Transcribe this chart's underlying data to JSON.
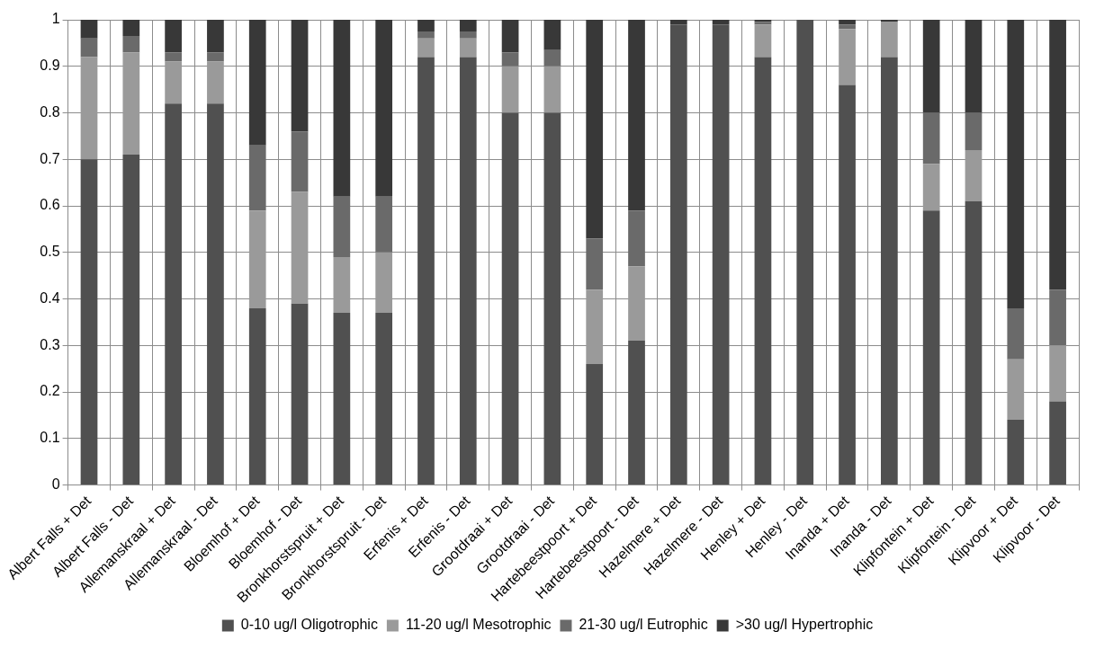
{
  "chart_data": {
    "type": "bar",
    "stacked": true,
    "grid": true,
    "legend": "bottom",
    "categories": [
      "Albert Falls + Det",
      "Albert Falls - Det",
      "Allemanskraal + Det",
      "Allemanskraal - Det",
      "Bloemhof + Det",
      "Bloemhof - Det",
      "Bronkhorstspruit + Det",
      "Bronkhorstspruit - Det",
      "Erfenis + Det",
      "Erfenis - Det",
      "Grootdraai + Det",
      "Grootdraai - Det",
      "Hartebeestpoort + Det",
      "Hartebeestpoort - Det",
      "Hazelmere + Det",
      "Hazelmere - Det",
      "Henley + Det",
      "Henley - Det",
      "Inanda + Det",
      "Inanda - Det",
      "Klipfontein + Det",
      "Klipfontein - Det",
      "Klipvoor + Det",
      "Klipvoor - Det"
    ],
    "ylim": [
      0,
      1
    ],
    "yticks": [
      0,
      0.1,
      0.2,
      0.3,
      0.4,
      0.5,
      0.6,
      0.7,
      0.8,
      0.9,
      1
    ],
    "series": [
      {
        "name": "0-10 ug/l Oligotrophic",
        "color": "#505050",
        "values": [
          0.7,
          0.71,
          0.82,
          0.82,
          0.38,
          0.39,
          0.37,
          0.37,
          0.92,
          0.92,
          0.8,
          0.8,
          0.26,
          0.31,
          0.99,
          0.99,
          0.92,
          1.0,
          0.86,
          0.92,
          0.59,
          0.61,
          0.14,
          0.18
        ]
      },
      {
        "name": "11-20 ug/l Mesotrophic",
        "color": "#9a9a9a",
        "values": [
          0.22,
          0.22,
          0.09,
          0.09,
          0.21,
          0.24,
          0.12,
          0.13,
          0.04,
          0.04,
          0.1,
          0.1,
          0.16,
          0.16,
          0,
          0,
          0.07,
          0,
          0.12,
          0.075,
          0.1,
          0.11,
          0.13,
          0.12
        ]
      },
      {
        "name": "21-30 ug/l Eutrophic",
        "color": "#6a6a6a",
        "values": [
          0.04,
          0.035,
          0.02,
          0.02,
          0.14,
          0.13,
          0.13,
          0.12,
          0.015,
          0.015,
          0.03,
          0.035,
          0.11,
          0.12,
          0,
          0,
          0.005,
          0,
          0.01,
          0,
          0.11,
          0.08,
          0.11,
          0.12
        ]
      },
      {
        "name": ">30 ug/l Hypertrophic",
        "color": "#383838",
        "values": [
          0.04,
          0.035,
          0.07,
          0.07,
          0.27,
          0.24,
          0.38,
          0.38,
          0.025,
          0.025,
          0.07,
          0.065,
          0.47,
          0.41,
          0.01,
          0.01,
          0.005,
          0,
          0.01,
          0.005,
          0.2,
          0.2,
          0.62,
          0.58
        ]
      }
    ]
  }
}
